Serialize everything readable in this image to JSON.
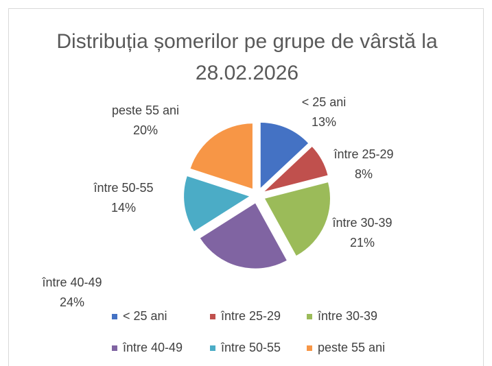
{
  "chart_data": {
    "type": "pie",
    "title": "Distribuția șomerilor pe grupe de vârstă la 28.02.2026",
    "categories": [
      "< 25 ani",
      "între 25-29",
      "între 30-39",
      "între 40-49",
      "între 50-55",
      "peste 55 ani"
    ],
    "values": [
      13,
      8,
      21,
      24,
      14,
      20
    ],
    "value_labels": [
      "13%",
      "8%",
      "21%",
      "24%",
      "14%",
      "20%"
    ],
    "colors": [
      "#4472c4",
      "#c0504d",
      "#9bbb59",
      "#8064a2",
      "#4bacc6",
      "#f79646"
    ],
    "legend": "bottom"
  }
}
